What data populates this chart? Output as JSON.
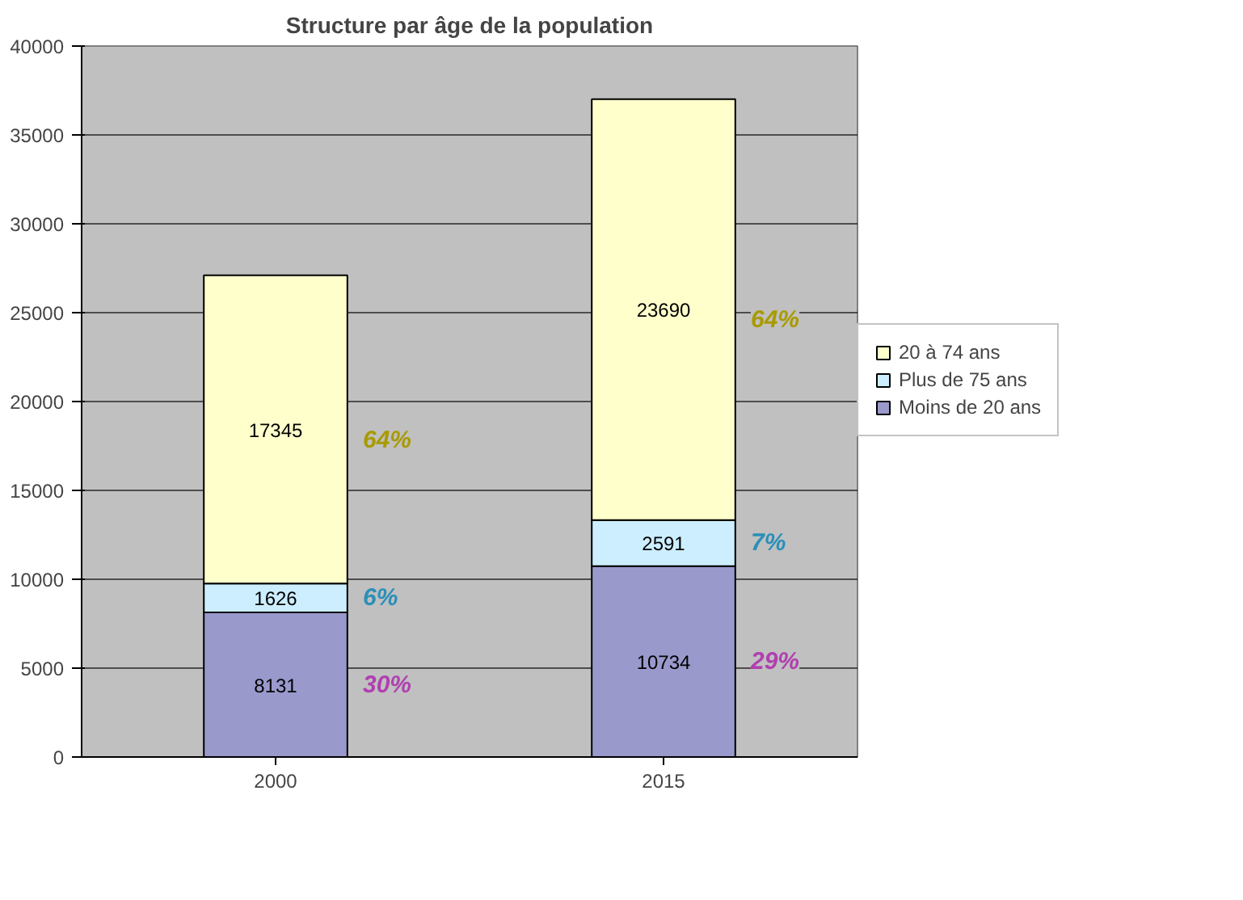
{
  "chart_data": {
    "type": "bar",
    "title": "Structure par âge de la population",
    "categories": [
      "2000",
      "2015"
    ],
    "stacked": true,
    "series": [
      {
        "name": "Moins de 20 ans",
        "color": "#9999cc",
        "values": [
          8131,
          10734
        ]
      },
      {
        "name": "Plus de 75 ans",
        "color": "#cceeff",
        "values": [
          1626,
          2591
        ]
      },
      {
        "name": "20 à 74 ans",
        "color": "#ffffcc",
        "values": [
          17345,
          23690
        ]
      }
    ],
    "ylim": [
      0,
      40000
    ],
    "yticks": [
      0,
      5000,
      10000,
      15000,
      20000,
      25000,
      30000,
      35000,
      40000
    ],
    "grid": "y",
    "legend": "right",
    "data_labels": true,
    "annotations": [
      "30%",
      "6%",
      "64%",
      "29%",
      "7%",
      "64%"
    ]
  }
}
